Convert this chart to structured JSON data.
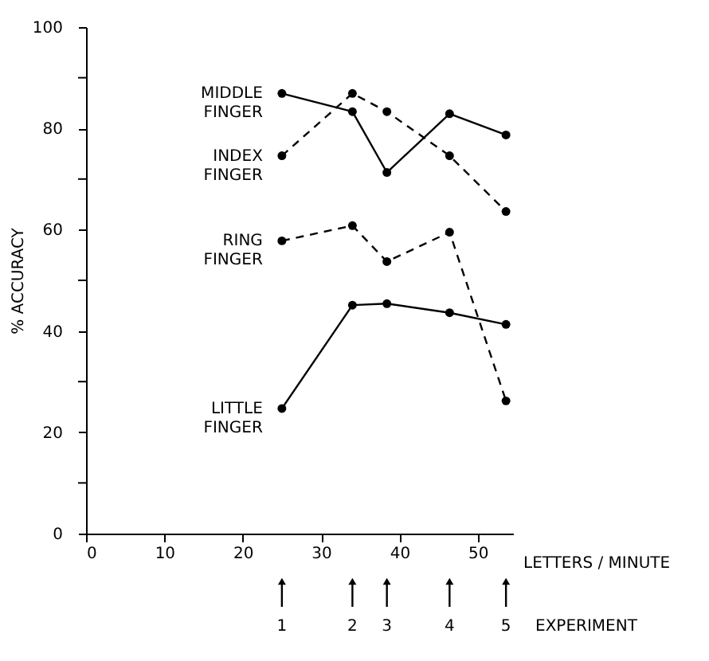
{
  "chart_data": {
    "type": "line",
    "xlabel": "LETTERS / MINUTE",
    "ylabel": "% ACCURACY",
    "x": [
      25,
      34,
      38.4,
      46.4,
      53.6
    ],
    "series": [
      {
        "name": "MIDDLE FINGER",
        "color": "#000000",
        "line_style": "solid",
        "values": [
          86.9,
          83.3,
          71.3,
          82.9,
          78.7
        ]
      },
      {
        "name": "INDEX FINGER",
        "color": "#000000",
        "line_style": "dashed",
        "values": [
          74.6,
          86.9,
          83.3,
          74.6,
          63.6
        ]
      },
      {
        "name": "RING FINGER",
        "color": "#000000",
        "line_style": "dashed",
        "values": [
          57.8,
          60.8,
          53.7,
          59.5,
          26.2
        ]
      },
      {
        "name": "LITTLE FINGER",
        "color": "#000000",
        "line_style": "solid",
        "values": [
          24.7,
          45.1,
          45.4,
          43.6,
          41.3
        ]
      }
    ],
    "xlim": [
      0,
      54.5
    ],
    "xticks": [
      0,
      10,
      20,
      30,
      40,
      50
    ],
    "ylim": [
      0,
      100
    ],
    "yticks": [
      0,
      {
        "value": 10,
        "label": null
      },
      20,
      {
        "value": 30,
        "label": null
      },
      40,
      {
        "value": 50,
        "label": null
      },
      60,
      {
        "value": 70,
        "label": null
      },
      80,
      {
        "value": 90,
        "label": null
      },
      100
    ],
    "annotations": [
      {
        "text": "1",
        "x": 25
      },
      {
        "text": "2",
        "x": 34
      },
      {
        "text": "3",
        "x": 38.4
      },
      {
        "text": "4",
        "x": 46.4
      },
      {
        "text": "5",
        "x": 53.6
      },
      "EXPERIMENT"
    ],
    "marker": "circle",
    "grid": false
  }
}
